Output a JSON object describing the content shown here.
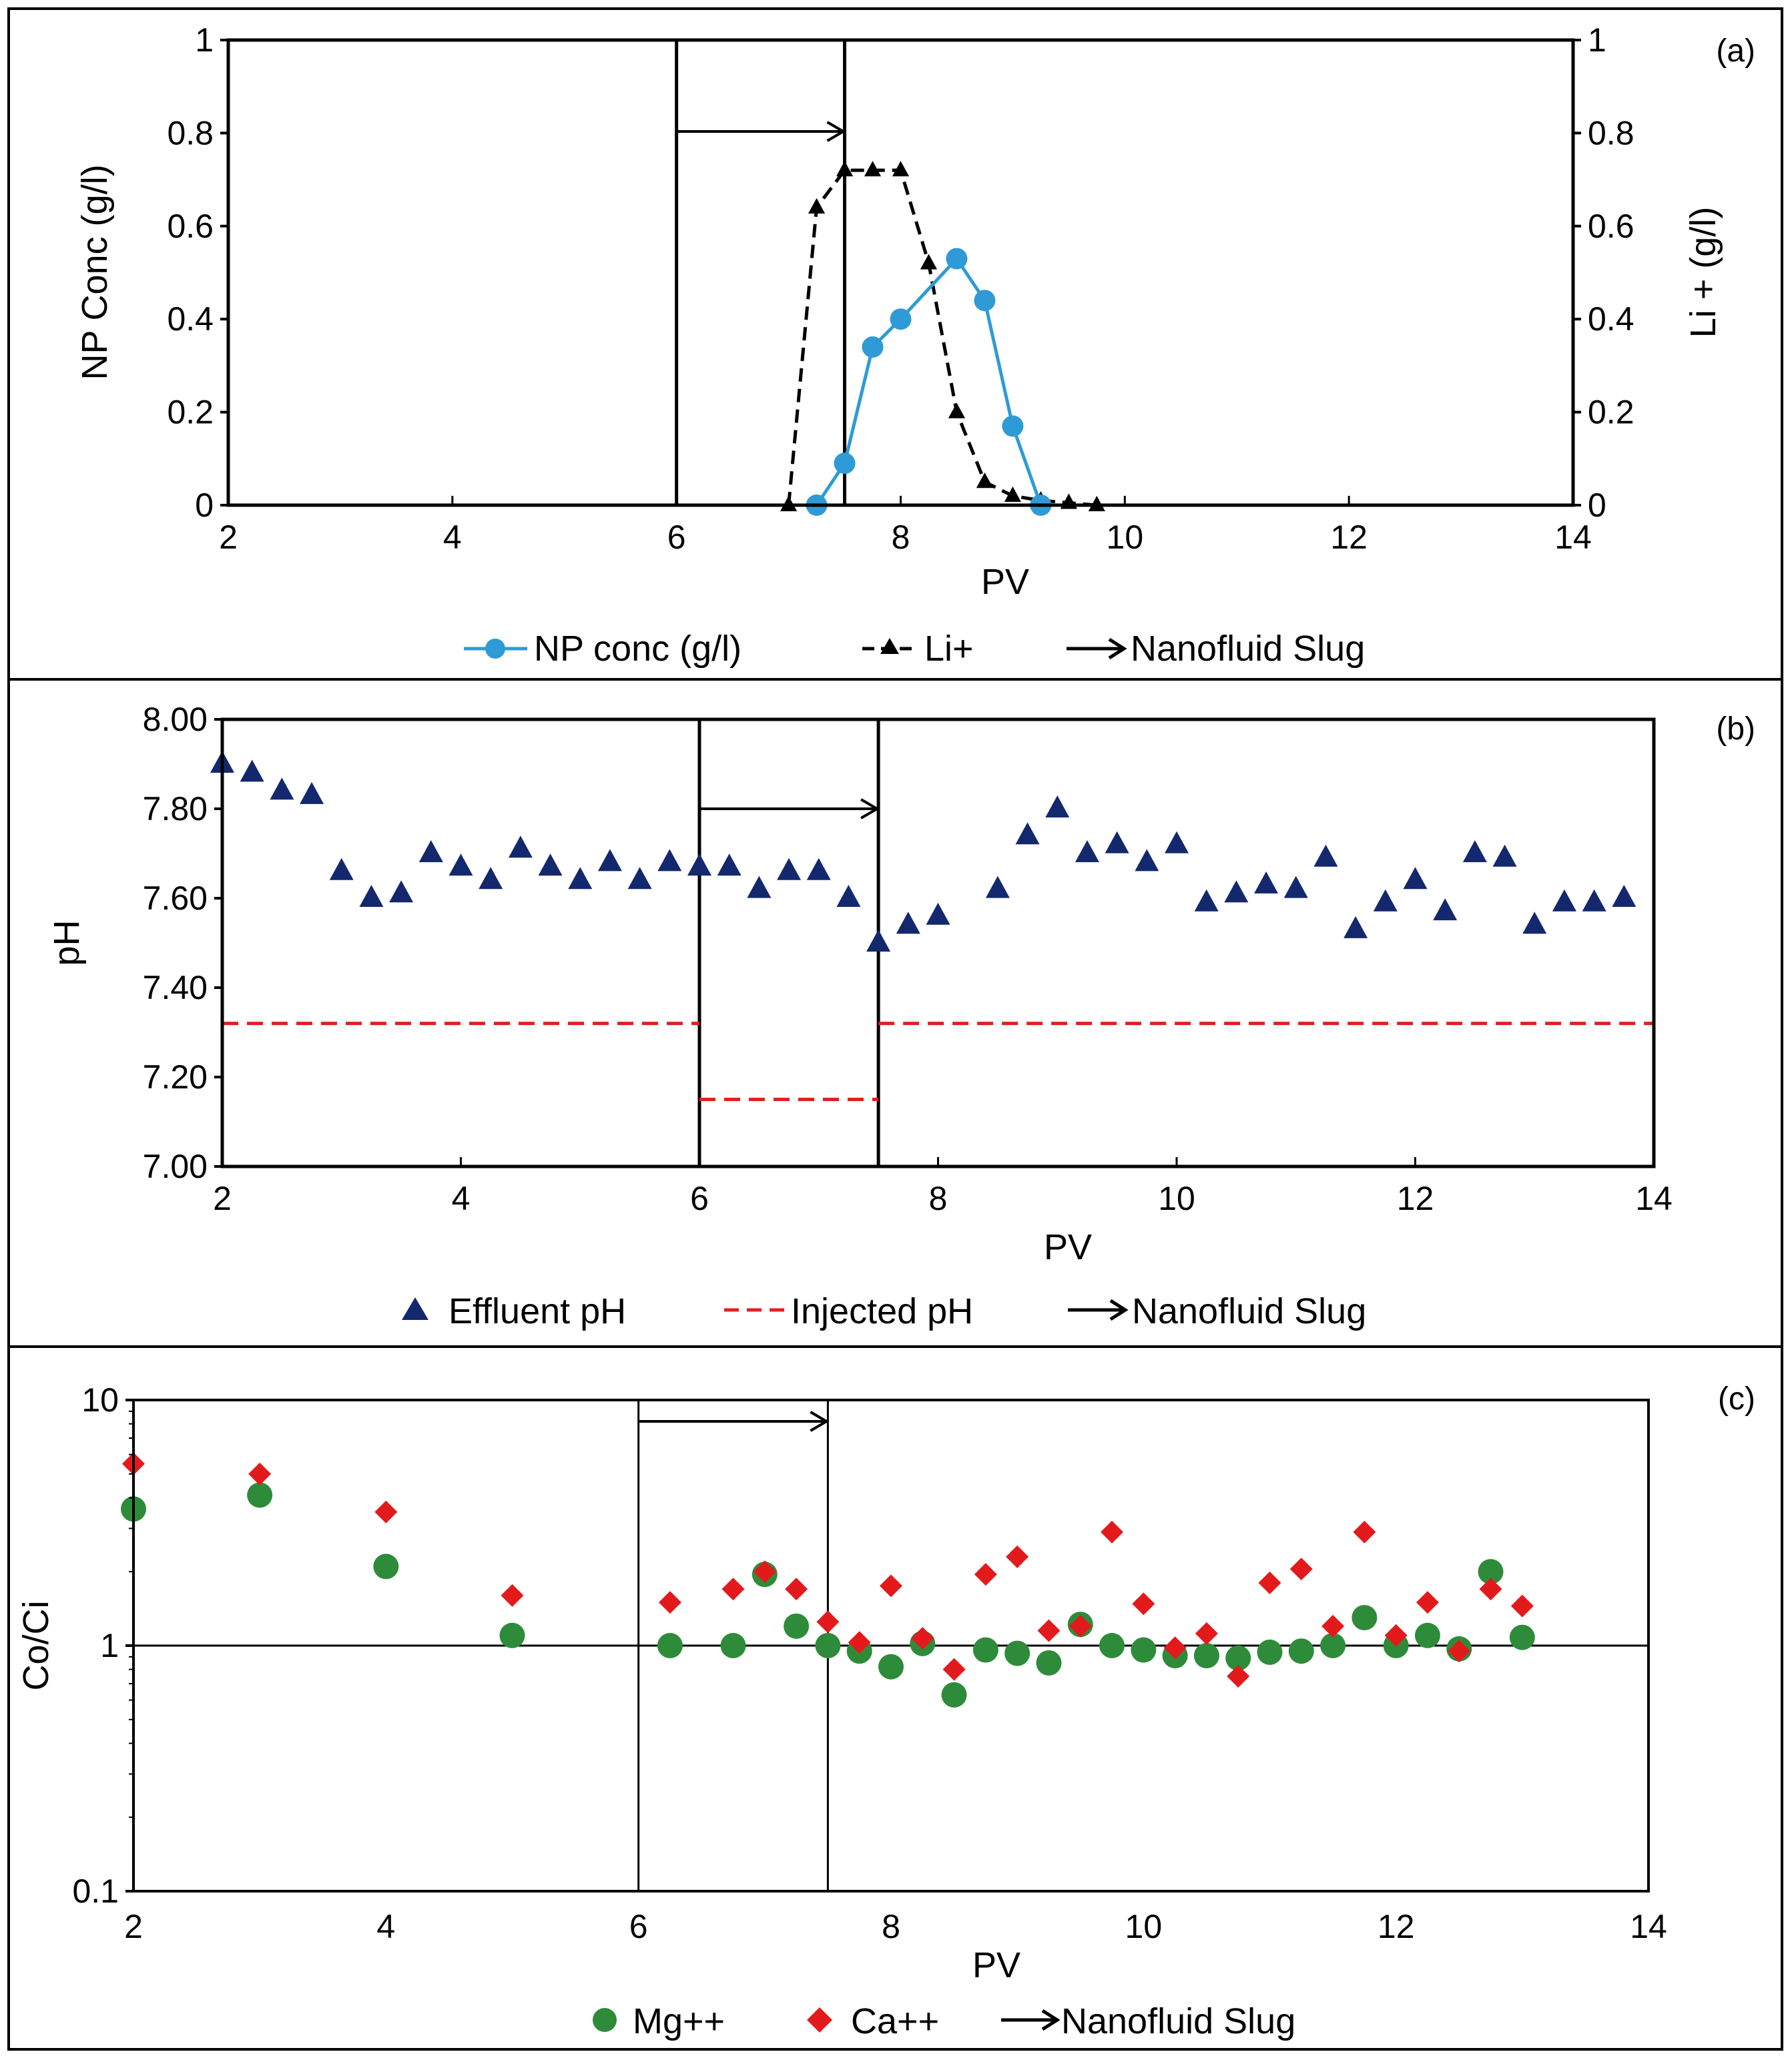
{
  "chart_data": [
    {
      "panel_label": "(a)",
      "type": "line",
      "xlabel": "PV",
      "ylabel": "NP Conc (g/l)",
      "y2label": "Li + (g/l)",
      "xlim": [
        2,
        14
      ],
      "xticks": [
        2,
        4,
        6,
        8,
        10,
        12,
        14
      ],
      "ylim": [
        0,
        1
      ],
      "yticks": [
        0,
        0.2,
        0.4,
        0.6,
        0.8,
        1
      ],
      "ytick_labels": [
        "0",
        "0.2",
        "0.4",
        "0.6",
        "0.8",
        "1"
      ],
      "y2lim": [
        0,
        1
      ],
      "y2ticks": [
        0,
        0.2,
        0.4,
        0.6,
        0.8,
        1
      ],
      "y2tick_labels": [
        "0",
        "0.2",
        "0.4",
        "0.6",
        "0.8",
        "1"
      ],
      "slug": {
        "start": 6,
        "end": 7.5
      },
      "series": [
        {
          "name": "NP conc (g/l)",
          "style": "solid-circle",
          "color": "#2e9bd6",
          "x": [
            7.25,
            7.5,
            7.75,
            8.0,
            8.5,
            8.75,
            9.0,
            9.25
          ],
          "y": [
            0.0,
            0.09,
            0.34,
            0.4,
            0.53,
            0.44,
            0.17,
            0.0
          ]
        },
        {
          "name": "Li+",
          "style": "dashed-triangle",
          "color": "#000000",
          "axis": "right",
          "x": [
            7.0,
            7.25,
            7.5,
            7.75,
            8.0,
            8.25,
            8.5,
            8.75,
            9.0,
            9.25,
            9.5,
            9.75
          ],
          "y": [
            0.0,
            0.64,
            0.72,
            0.72,
            0.72,
            0.52,
            0.2,
            0.05,
            0.02,
            0.01,
            0.005,
            0.0
          ]
        }
      ],
      "legend": [
        "NP conc (g/l)",
        "Li+",
        "Nanofluid Slug"
      ]
    },
    {
      "panel_label": "(b)",
      "type": "scatter",
      "xlabel": "PV",
      "ylabel": "pH",
      "xlim": [
        2,
        14
      ],
      "xticks": [
        2,
        4,
        6,
        8,
        10,
        12,
        14
      ],
      "ylim": [
        7.0,
        8.0
      ],
      "yticks": [
        7.0,
        7.2,
        7.4,
        7.6,
        7.8,
        8.0
      ],
      "ytick_labels": [
        "7.00",
        "7.20",
        "7.40",
        "7.60",
        "7.80",
        "8.00"
      ],
      "slug": {
        "start": 6,
        "end": 7.5
      },
      "series": [
        {
          "name": "Effluent pH",
          "style": "triangle",
          "color": "#14286e",
          "x": [
            2,
            2.25,
            2.5,
            2.75,
            3,
            3.25,
            3.5,
            3.75,
            4,
            4.25,
            4.5,
            4.75,
            5,
            5.25,
            5.5,
            5.75,
            6,
            6.25,
            6.5,
            6.75,
            7,
            7.25,
            7.5,
            7.75,
            8,
            8.5,
            8.75,
            9,
            9.25,
            9.5,
            9.75,
            10,
            10.25,
            10.5,
            10.75,
            11,
            11.25,
            11.5,
            11.75,
            12,
            12.25,
            12.5,
            12.75,
            13,
            13.25,
            13.5,
            13.75
          ],
          "y": [
            7.9,
            7.88,
            7.84,
            7.83,
            7.66,
            7.6,
            7.61,
            7.7,
            7.67,
            7.64,
            7.71,
            7.67,
            7.64,
            7.68,
            7.64,
            7.68,
            7.67,
            7.67,
            7.62,
            7.66,
            7.66,
            7.6,
            7.5,
            7.54,
            7.56,
            7.62,
            7.74,
            7.8,
            7.7,
            7.72,
            7.68,
            7.72,
            7.59,
            7.61,
            7.63,
            7.62,
            7.69,
            7.53,
            7.59,
            7.64,
            7.57,
            7.7,
            7.69,
            7.54,
            7.59,
            7.59,
            7.6
          ]
        },
        {
          "name": "Injected pH",
          "style": "dashed-line",
          "color": "#e02020",
          "segments": [
            {
              "x": [
                2,
                6
              ],
              "y": [
                7.32,
                7.32
              ]
            },
            {
              "x": [
                6,
                7.5
              ],
              "y": [
                7.15,
                7.15
              ]
            },
            {
              "x": [
                7.5,
                14
              ],
              "y": [
                7.32,
                7.32
              ]
            }
          ]
        }
      ],
      "legend": [
        "Effluent pH",
        "Injected pH",
        "Nanofluid Slug"
      ]
    },
    {
      "panel_label": "(c)",
      "type": "scatter",
      "xlabel": "PV",
      "ylabel": "Co/Ci",
      "yscale": "log",
      "xlim": [
        2,
        14
      ],
      "xticks": [
        2,
        4,
        6,
        8,
        10,
        12,
        14
      ],
      "ylim": [
        0.1,
        10
      ],
      "yticks": [
        0.1,
        1,
        10
      ],
      "ytick_labels": [
        "0.1",
        "1",
        "10"
      ],
      "reference_line": 1,
      "slug": {
        "start": 6,
        "end": 7.5
      },
      "series": [
        {
          "name": "Mg++",
          "style": "circle",
          "color": "#2e8b3a",
          "x": [
            2,
            3,
            4,
            5,
            6.25,
            6.75,
            7,
            7.25,
            7.5,
            7.75,
            8,
            8.25,
            8.5,
            8.75,
            9,
            9.25,
            9.5,
            9.75,
            10,
            10.25,
            10.5,
            10.75,
            11,
            11.25,
            11.5,
            11.75,
            12,
            12.25,
            12.5,
            12.75,
            13
          ],
          "y": [
            3.6,
            4.1,
            2.1,
            1.1,
            1.0,
            1.0,
            1.95,
            1.2,
            1.0,
            0.95,
            0.82,
            1.02,
            0.63,
            0.96,
            0.93,
            0.85,
            1.22,
            1.0,
            0.96,
            0.91,
            0.91,
            0.89,
            0.94,
            0.95,
            1.0,
            1.3,
            1.0,
            1.1,
            0.97,
            2.0,
            1.08
          ]
        },
        {
          "name": "Ca++",
          "style": "diamond",
          "color": "#e31a1c",
          "x": [
            2,
            3,
            4,
            5,
            6.25,
            6.75,
            7,
            7.25,
            7.5,
            7.75,
            8,
            8.25,
            8.5,
            8.75,
            9,
            9.25,
            9.5,
            9.75,
            10,
            10.25,
            10.5,
            10.75,
            11,
            11.25,
            11.5,
            11.75,
            12,
            12.25,
            12.5,
            12.75,
            13
          ],
          "y": [
            5.5,
            5.0,
            3.5,
            1.6,
            1.5,
            1.7,
            2.0,
            1.7,
            1.25,
            1.03,
            1.75,
            1.07,
            0.8,
            1.95,
            2.3,
            1.15,
            1.2,
            2.9,
            1.48,
            0.98,
            1.12,
            0.75,
            1.8,
            2.05,
            1.2,
            2.9,
            1.1,
            1.5,
            0.95,
            1.7,
            1.45
          ]
        }
      ],
      "legend": [
        "Mg++",
        "Ca++",
        "Nanofluid Slug"
      ]
    }
  ]
}
